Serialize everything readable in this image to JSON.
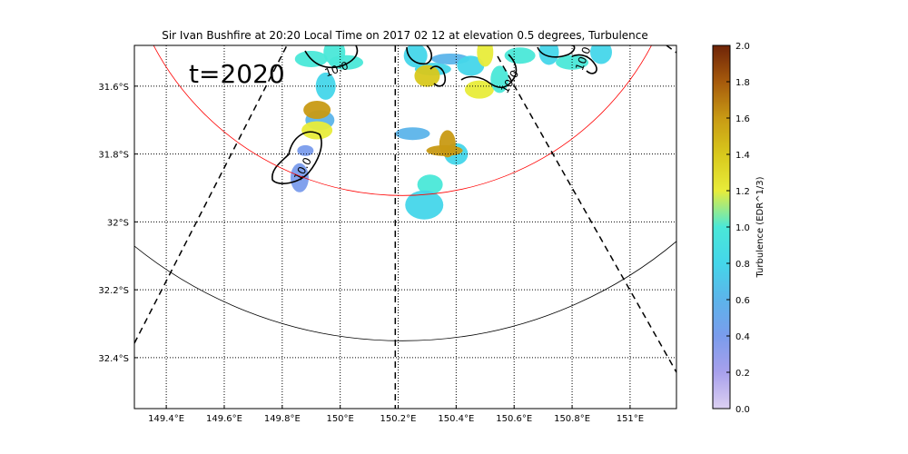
{
  "chart_data": {
    "type": "heatmap",
    "title": "Sir Ivan Bushfire at 20:20 Local Time on 2017 02 12 at elevation 0.5 degrees, Turbulence",
    "annotation": "t=2020",
    "x_ticks": [
      {
        "value": 149.4,
        "label": "149.4°E"
      },
      {
        "value": 149.6,
        "label": "149.6°E"
      },
      {
        "value": 149.8,
        "label": "149.8°E"
      },
      {
        "value": 150.0,
        "label": "150°E"
      },
      {
        "value": 150.2,
        "label": "150.2°E"
      },
      {
        "value": 150.4,
        "label": "150.4°E"
      },
      {
        "value": 150.6,
        "label": "150.6°E"
      },
      {
        "value": 150.8,
        "label": "150.8°E"
      },
      {
        "value": 151.0,
        "label": "151°E"
      }
    ],
    "y_ticks": [
      {
        "value": -31.6,
        "label": "31.6°S"
      },
      {
        "value": -31.8,
        "label": "31.8°S"
      },
      {
        "value": -32.0,
        "label": "32°S"
      },
      {
        "value": -32.2,
        "label": "32.2°S"
      },
      {
        "value": -32.4,
        "label": "32.4°S"
      }
    ],
    "xlim": [
      149.29,
      151.16
    ],
    "ylim": [
      -32.55,
      -31.48
    ],
    "grid": true,
    "colorbar": {
      "label": "Turbulence (EDR^1/3)",
      "min": 0.0,
      "max": 2.0,
      "ticks": [
        "0.0",
        "0.2",
        "0.4",
        "0.6",
        "0.8",
        "1.0",
        "1.2",
        "1.4",
        "1.6",
        "1.8",
        "2.0"
      ],
      "colors": [
        "#dcd0f2",
        "#a8a0ec",
        "#7a9cec",
        "#5cb4ea",
        "#44d6ea",
        "#4ae8d8",
        "#e8ec3a",
        "#d8c81c",
        "#c89a14",
        "#a65a0c",
        "#6e2408"
      ]
    },
    "radar_lon": 150.19,
    "contour_labels": [
      "10.0",
      "10.0",
      "10.0",
      "10.0"
    ],
    "patches": [
      {
        "lon": 149.88,
        "lat": -31.79,
        "value": 0.45
      },
      {
        "lon": 149.93,
        "lat": -31.7,
        "value": 0.55
      },
      {
        "lon": 149.86,
        "lat": -31.87,
        "value": 0.4
      },
      {
        "lon": 149.92,
        "lat": -31.73,
        "value": 1.1
      },
      {
        "lon": 149.95,
        "lat": -31.6,
        "value": 0.7
      },
      {
        "lon": 149.9,
        "lat": -31.52,
        "value": 1.0
      },
      {
        "lon": 149.98,
        "lat": -31.5,
        "value": 0.9
      },
      {
        "lon": 150.02,
        "lat": -31.53,
        "value": 1.05
      },
      {
        "lon": 150.26,
        "lat": -31.51,
        "value": 0.75
      },
      {
        "lon": 150.32,
        "lat": -31.55,
        "value": 0.85
      },
      {
        "lon": 150.3,
        "lat": -31.57,
        "value": 1.3
      },
      {
        "lon": 150.38,
        "lat": -31.52,
        "value": 0.6
      },
      {
        "lon": 150.45,
        "lat": -31.54,
        "value": 0.8
      },
      {
        "lon": 150.5,
        "lat": -31.5,
        "value": 1.1
      },
      {
        "lon": 150.48,
        "lat": -31.61,
        "value": 1.15
      },
      {
        "lon": 150.55,
        "lat": -31.58,
        "value": 0.9
      },
      {
        "lon": 150.62,
        "lat": -31.51,
        "value": 1.05
      },
      {
        "lon": 150.72,
        "lat": -31.5,
        "value": 0.7
      },
      {
        "lon": 150.8,
        "lat": -31.53,
        "value": 0.95
      },
      {
        "lon": 150.9,
        "lat": -31.5,
        "value": 0.75
      },
      {
        "lon": 150.25,
        "lat": -31.74,
        "value": 0.65
      },
      {
        "lon": 150.4,
        "lat": -31.8,
        "value": 0.8
      },
      {
        "lon": 150.36,
        "lat": -31.79,
        "value": 1.5
      },
      {
        "lon": 150.31,
        "lat": -31.89,
        "value": 1.05
      },
      {
        "lon": 150.29,
        "lat": -31.95,
        "value": 0.8
      },
      {
        "lon": 149.92,
        "lat": -31.67,
        "value": 1.5
      },
      {
        "lon": 150.37,
        "lat": -31.77,
        "value": 1.6
      }
    ]
  }
}
